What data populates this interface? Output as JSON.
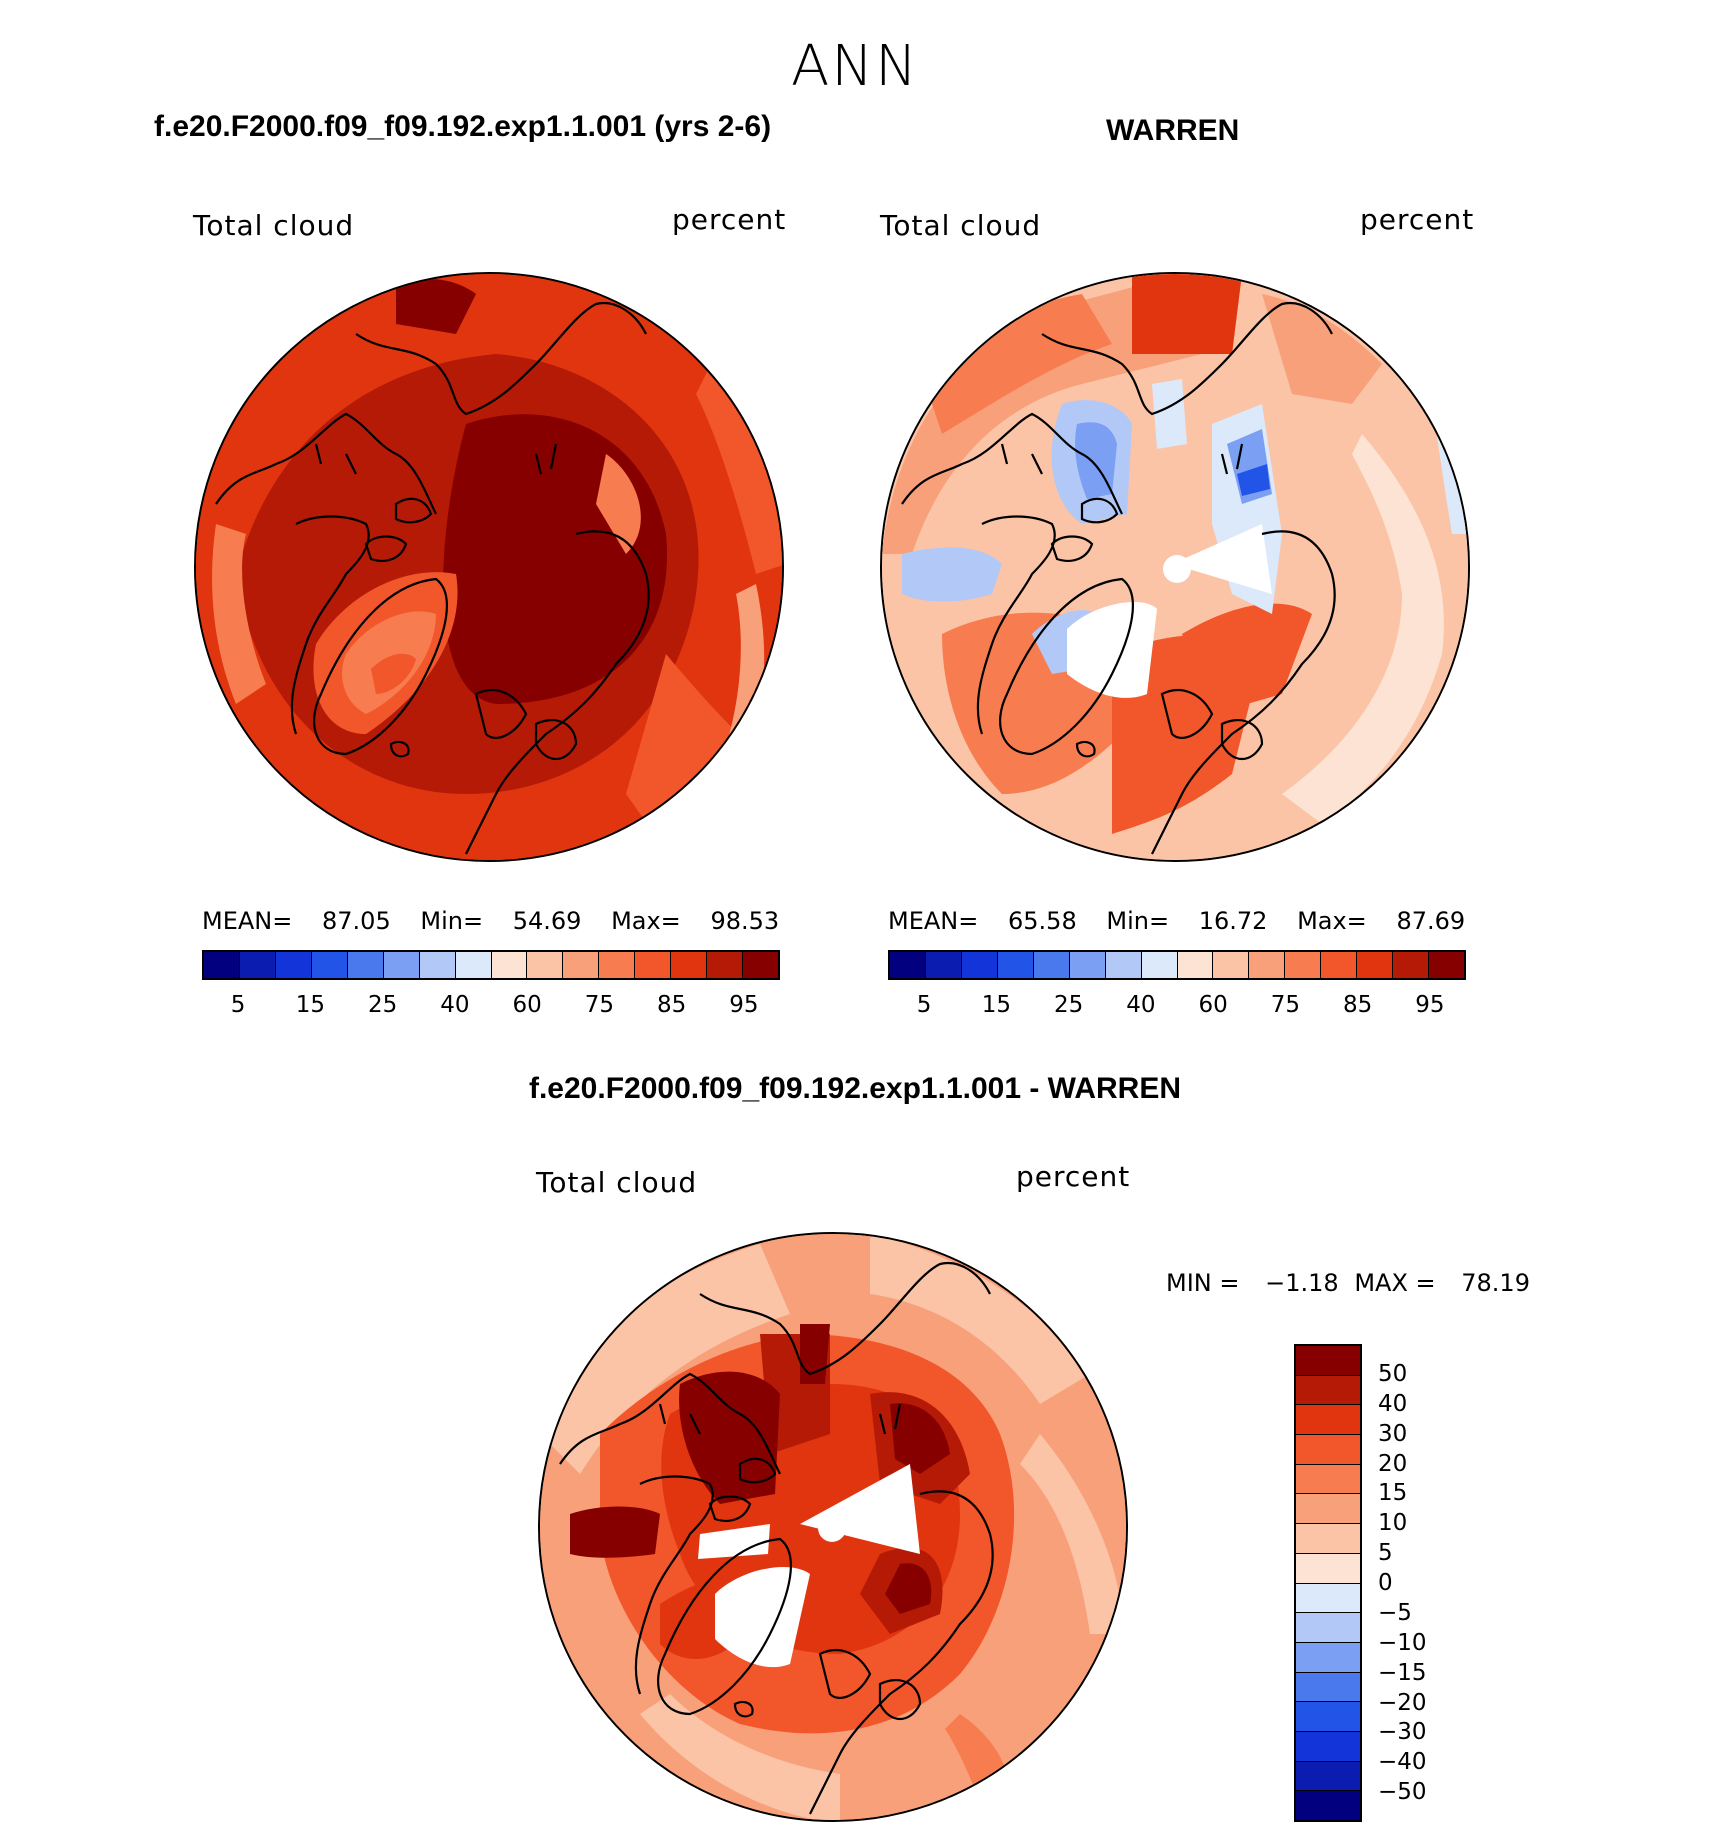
{
  "season": "ANN",
  "panels": [
    {
      "title": "f.e20.F2000.f09_f09.192.exp1.1.001 (yrs 2-6)",
      "variable": "Total cloud",
      "units": "percent",
      "stats": {
        "mean_label": "MEAN=",
        "mean": "87.05",
        "min_label": "Min=",
        "min": "54.69",
        "max_label": "Max=",
        "max": "98.53"
      }
    },
    {
      "title": "WARREN",
      "variable": "Total cloud",
      "units": "percent",
      "stats": {
        "mean_label": "MEAN=",
        "mean": "65.58",
        "min_label": "Min=",
        "min": "16.72",
        "max_label": "Max=",
        "max": "87.69"
      }
    }
  ],
  "diff_panel": {
    "title": "f.e20.F2000.f09_f09.192.exp1.1.001 - WARREN",
    "variable": "Total cloud",
    "units": "percent",
    "minmax": {
      "min_label": "MIN =",
      "min": "−1.18",
      "max_label": "MAX =",
      "max": "78.19"
    }
  },
  "colorbars": {
    "abs": {
      "colors": [
        "#02007f",
        "#0a1db0",
        "#1334d9",
        "#2354e8",
        "#4a79ee",
        "#7b9ff3",
        "#b2c9f7",
        "#dbe9fb",
        "#fde3d3",
        "#fbc4a6",
        "#f8a07a",
        "#f77d50",
        "#f2562b",
        "#e1350f",
        "#b51a07",
        "#870000"
      ],
      "tick_labels": [
        "5",
        "15",
        "25",
        "40",
        "60",
        "75",
        "85",
        "95"
      ]
    },
    "diff": {
      "colors": [
        "#870000",
        "#b51a07",
        "#e1350f",
        "#f2562b",
        "#f77d50",
        "#f8a07a",
        "#fbc4a6",
        "#fde3d3",
        "#dbe9fb",
        "#b2c9f7",
        "#7b9ff3",
        "#4a79ee",
        "#2354e8",
        "#1334d9",
        "#0a1db0",
        "#02007f"
      ],
      "tick_labels": [
        "50",
        "40",
        "30",
        "20",
        "15",
        "10",
        "5",
        "0",
        "−5",
        "−10",
        "−15",
        "−20",
        "−30",
        "−40",
        "−50"
      ]
    }
  },
  "chart_data": {
    "type": "heatmap",
    "projection": "north polar stereographic",
    "field": "Total cloud (percent), annual mean",
    "panels": [
      {
        "name": "f.e20.F2000.f09_f09.192.exp1.1.001 (yrs 2-6)",
        "mean": 87.05,
        "min": 54.69,
        "max": 98.53
      },
      {
        "name": "WARREN",
        "mean": 65.58,
        "min": 16.72,
        "max": 87.69
      },
      {
        "name": "f.e20.F2000.f09_f09.192.exp1.1.001 - WARREN",
        "min": -1.18,
        "max": 78.19
      }
    ],
    "abs_levels": [
      5,
      10,
      15,
      20,
      25,
      30,
      40,
      50,
      60,
      70,
      75,
      80,
      85,
      90,
      95
    ],
    "diff_levels": [
      -50,
      -40,
      -30,
      -20,
      -15,
      -10,
      -5,
      0,
      5,
      10,
      15,
      20,
      30,
      40,
      50
    ]
  }
}
